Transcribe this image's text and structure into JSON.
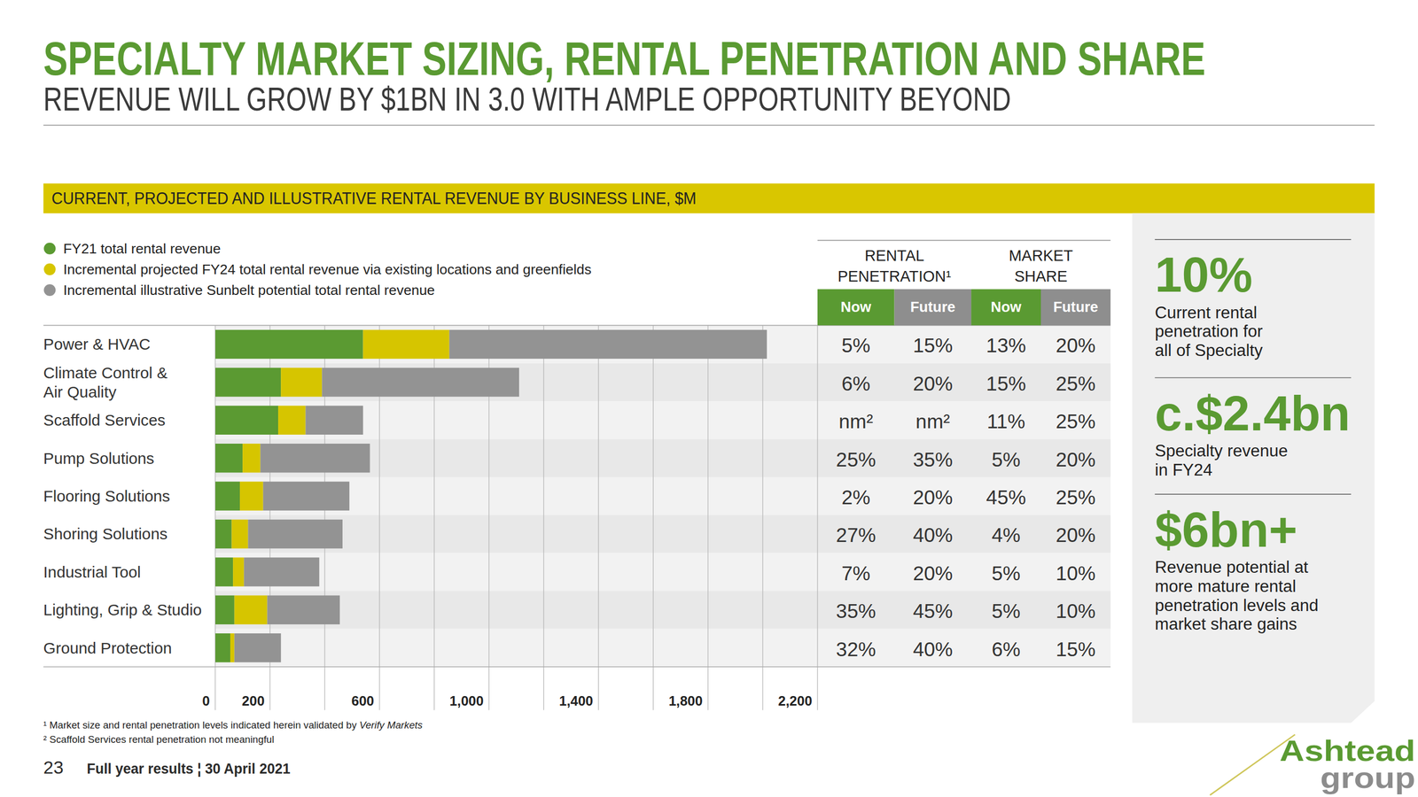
{
  "header": {
    "title": "SPECIALTY MARKET SIZING, RENTAL PENETRATION AND SHARE",
    "subtitle": "REVENUE WILL GROW BY $1BN IN 3.0 WITH AMPLE OPPORTUNITY BEYOND"
  },
  "chart_data": {
    "type": "bar",
    "orientation": "horizontal",
    "stacked": true,
    "grid": true,
    "legend": "top-left",
    "title": "CURRENT, PROJECTED AND ILLUSTRATIVE RENTAL REVENUE BY BUSINESS LINE, $M",
    "categories": [
      "Power & HVAC",
      "Climate Control &\nAir Quality",
      "Scaffold Services",
      "Pump Solutions",
      "Flooring Solutions",
      "Shoring Solutions",
      "Industrial Tool",
      "Lighting, Grip & Studio",
      "Ground Protection"
    ],
    "series": [
      {
        "name": "FY21 total rental revenue",
        "color": "#5b9a32",
        "values": [
          540,
          240,
          230,
          100,
          90,
          60,
          65,
          70,
          55
        ]
      },
      {
        "name": "Incremental projected FY24 total rental revenue via existing locations and greenfields",
        "color": "#d6c500",
        "values": [
          315,
          150,
          100,
          65,
          85,
          60,
          40,
          120,
          15
        ]
      },
      {
        "name": "Incremental illustrative Sunbelt potential total rental revenue",
        "color": "#939393",
        "values": [
          1160,
          720,
          210,
          400,
          315,
          345,
          275,
          265,
          170
        ]
      }
    ],
    "xlim": [
      0,
      2200
    ],
    "xticks": [
      0,
      200,
      {
        "value": 400,
        "label": null
      },
      600,
      {
        "value": 800,
        "label": null
      },
      {
        "value": 1000,
        "label": "1,000"
      },
      {
        "value": 1200,
        "label": null
      },
      {
        "value": 1400,
        "label": "1,400"
      },
      {
        "value": 1600,
        "label": null
      },
      {
        "value": 1800,
        "label": "1,800"
      },
      {
        "value": 2000,
        "label": null
      },
      {
        "value": 2200,
        "label": "2,200"
      }
    ]
  },
  "table": {
    "groups": [
      {
        "label": "RENTAL\nPENETRATION¹",
        "columns": [
          "Now",
          "Future"
        ]
      },
      {
        "label": "MARKET\nSHARE",
        "columns": [
          "Now",
          "Future"
        ]
      }
    ],
    "rows": [
      [
        "5%",
        "15%",
        "13%",
        "20%"
      ],
      [
        "6%",
        "20%",
        "15%",
        "25%"
      ],
      [
        "nm²",
        "nm²",
        "11%",
        "25%"
      ],
      [
        "25%",
        "35%",
        "5%",
        "20%"
      ],
      [
        "2%",
        "20%",
        "45%",
        "25%"
      ],
      [
        "27%",
        "40%",
        "4%",
        "20%"
      ],
      [
        "7%",
        "20%",
        "5%",
        "10%"
      ],
      [
        "35%",
        "45%",
        "5%",
        "10%"
      ],
      [
        "32%",
        "40%",
        "6%",
        "15%"
      ]
    ]
  },
  "highlights": [
    {
      "value": "10%",
      "lines": [
        "Current rental",
        "penetration for",
        "all of Specialty"
      ]
    },
    {
      "value": "c.$2.4bn",
      "lines": [
        "Specialty revenue",
        "in FY24"
      ]
    },
    {
      "value": "$6bn+",
      "lines": [
        "Revenue potential at",
        "more mature rental",
        "penetration levels and",
        "market share gains"
      ]
    }
  ],
  "footnotes": [
    {
      "marker": "¹",
      "text": "Market size and rental penetration levels indicated herein validated by",
      "italic": "Verify Markets"
    },
    {
      "marker": "²",
      "text": "Scaffold Services rental penetration not meaningful"
    }
  ],
  "footer": {
    "page": "23",
    "text": "Full year results ¦ 30 April 2021"
  },
  "logo": {
    "lines": [
      "Ashtead",
      "group"
    ]
  }
}
